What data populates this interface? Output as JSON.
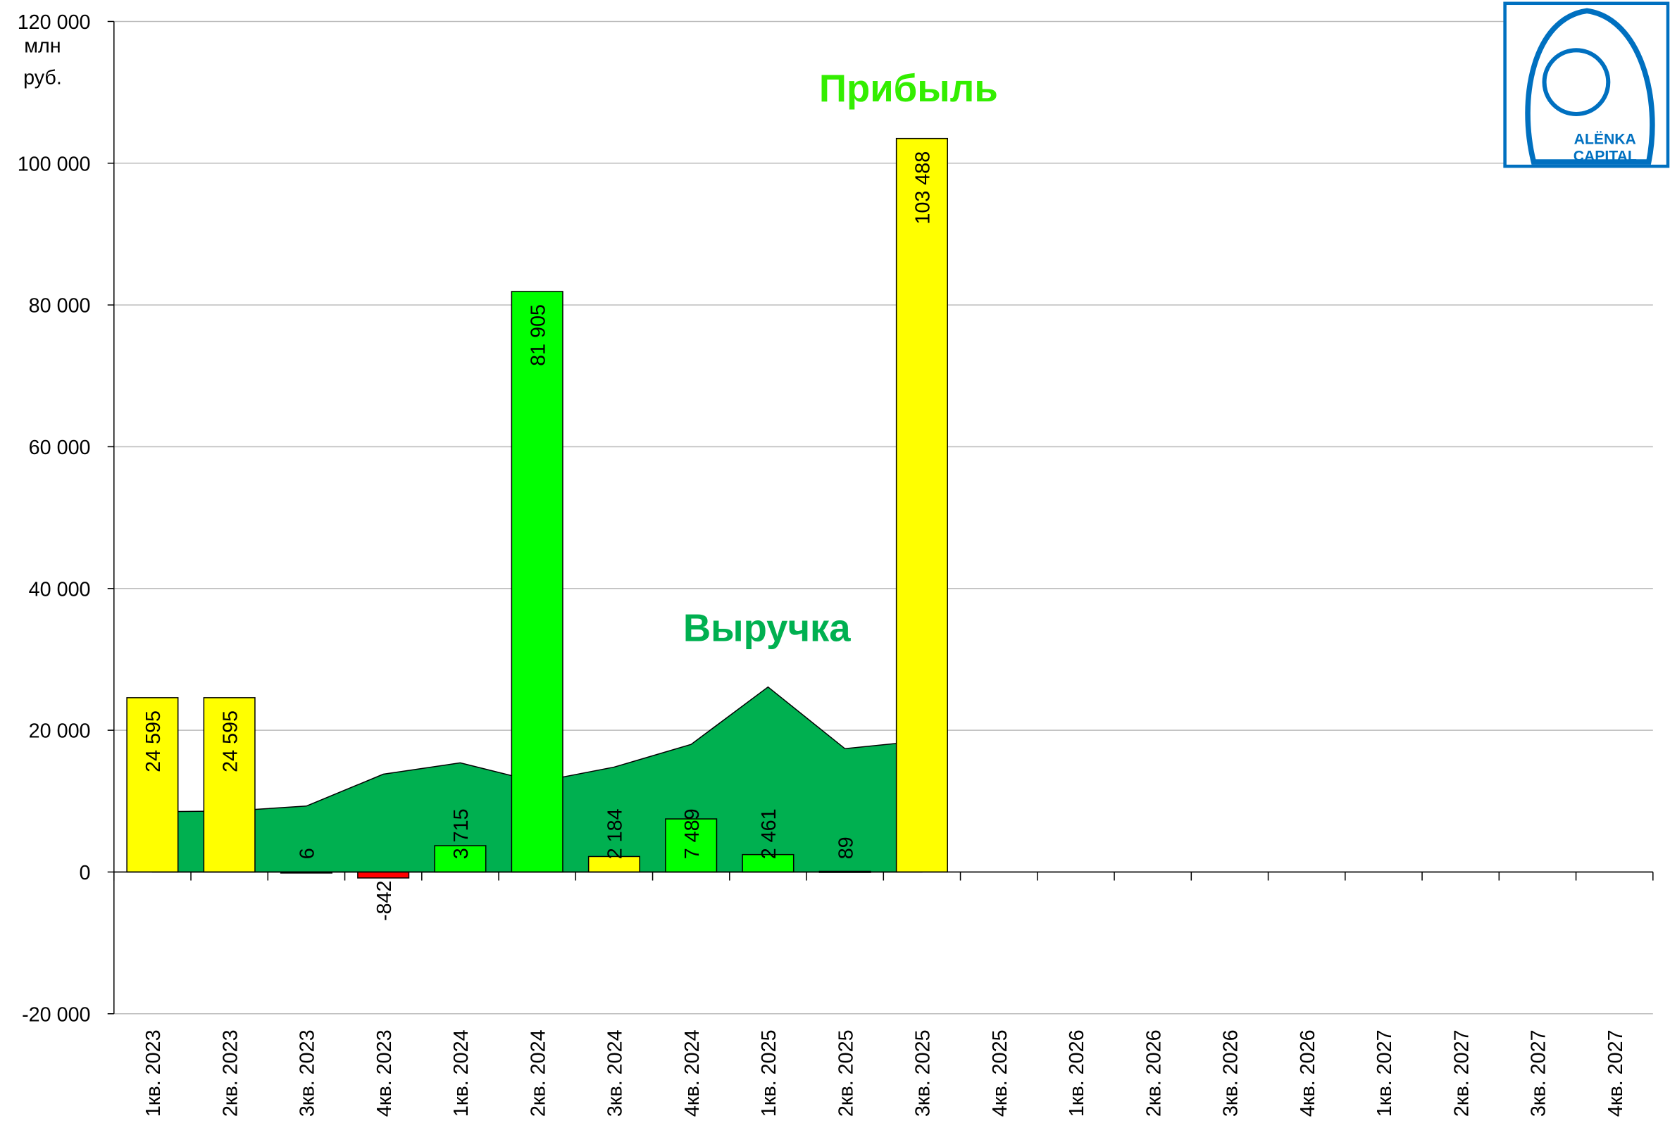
{
  "chart_data": {
    "type": "bar",
    "y_unit": [
      "млн",
      "руб."
    ],
    "categories": [
      "1кв. 2023",
      "2кв. 2023",
      "3кв. 2023",
      "4кв. 2023",
      "1кв. 2024",
      "2кв. 2024",
      "3кв. 2024",
      "4кв. 2024",
      "1кв. 2025",
      "2кв. 2025",
      "3кв. 2025",
      "4кв. 2025",
      "1кв. 2026",
      "2кв. 2026",
      "3кв. 2026",
      "4кв. 2026",
      "1кв. 2027",
      "2кв. 2027",
      "3кв. 2027",
      "4кв. 2027"
    ],
    "series": [
      {
        "name": "Прибыль",
        "type": "bar",
        "colors": [
          "#ffff00",
          "#ffff00",
          "#00ff00",
          "#ff0000",
          "#00ff00",
          "#00ff00",
          "#ffff00",
          "#00ff00",
          "#00ff00",
          "#00ff00",
          "#ffff00",
          null,
          null,
          null,
          null,
          null,
          null,
          null,
          null,
          null
        ],
        "values": [
          24595,
          24595,
          6,
          -842,
          3715,
          81905,
          2184,
          7489,
          2461,
          89,
          103488,
          null,
          null,
          null,
          null,
          null,
          null,
          null,
          null,
          null
        ],
        "value_labels": [
          "24 595",
          "24 595",
          "6",
          "-842",
          "3 715",
          "81 905",
          "2 184",
          "7 489",
          "2 461",
          "89",
          "103 488",
          null,
          null,
          null,
          null,
          null,
          null,
          null,
          null,
          null
        ]
      },
      {
        "name": "Выручка",
        "type": "area",
        "color": "#00b050",
        "values": [
          8500,
          8600,
          9300,
          13800,
          15400,
          12700,
          14800,
          18000,
          26100,
          17400,
          18500,
          null,
          null,
          null,
          null,
          null,
          null,
          null,
          null,
          null
        ]
      }
    ],
    "ylim": [
      -20000,
      120000
    ],
    "yticks": [
      {
        "value": -20000,
        "label": "-20 000"
      },
      0,
      {
        "value": 20000,
        "label": "20 000"
      },
      {
        "value": 40000,
        "label": "40 000"
      },
      {
        "value": 60000,
        "label": "60 000"
      },
      {
        "value": 80000,
        "label": "80 000"
      },
      {
        "value": 100000,
        "label": "100 000"
      },
      {
        "value": 120000,
        "label": "120 000"
      }
    ],
    "grid": true
  },
  "logo": {
    "lines": [
      "ALËNKA",
      "CAPITAL"
    ]
  }
}
